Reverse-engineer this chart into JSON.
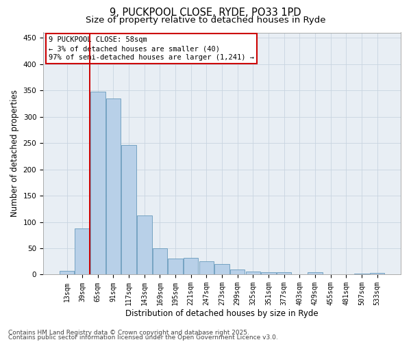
{
  "title_line1": "9, PUCKPOOL CLOSE, RYDE, PO33 1PD",
  "title_line2": "Size of property relative to detached houses in Ryde",
  "xlabel": "Distribution of detached houses by size in Ryde",
  "ylabel": "Number of detached properties",
  "categories": [
    "13sqm",
    "39sqm",
    "65sqm",
    "91sqm",
    "117sqm",
    "143sqm",
    "169sqm",
    "195sqm",
    "221sqm",
    "247sqm",
    "273sqm",
    "299sqm",
    "325sqm",
    "351sqm",
    "377sqm",
    "403sqm",
    "429sqm",
    "455sqm",
    "481sqm",
    "507sqm",
    "533sqm"
  ],
  "values": [
    7,
    88,
    348,
    335,
    246,
    112,
    50,
    30,
    32,
    25,
    20,
    10,
    6,
    5,
    5,
    1,
    4,
    1,
    0,
    2,
    3
  ],
  "bar_color": "#b8d0e8",
  "bar_edgecolor": "#6699bb",
  "annotation_box_text": "9 PUCKPOOL CLOSE: 58sqm\n← 3% of detached houses are smaller (40)\n97% of semi-detached houses are larger (1,241) →",
  "redline_x": 1.5,
  "redline_color": "#cc0000",
  "ylim": [
    0,
    460
  ],
  "yticks": [
    0,
    50,
    100,
    150,
    200,
    250,
    300,
    350,
    400,
    450
  ],
  "footer_line1": "Contains HM Land Registry data © Crown copyright and database right 2025.",
  "footer_line2": "Contains public sector information licensed under the Open Government Licence v3.0.",
  "background_color": "#e8eef4",
  "grid_color": "#c8d4e0",
  "title_fontsize": 10.5,
  "subtitle_fontsize": 9.5,
  "tick_fontsize": 7,
  "ylabel_fontsize": 8.5,
  "xlabel_fontsize": 8.5,
  "footer_fontsize": 6.5,
  "annotation_fontsize": 7.5
}
